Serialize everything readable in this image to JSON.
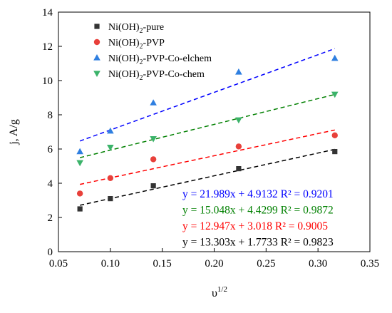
{
  "chart_data": {
    "type": "scatter",
    "xlabel": "υ",
    "xlabel_sup": "1/2",
    "ylabel": "j, A/g",
    "xlim": [
      0.05,
      0.35
    ],
    "ylim": [
      0,
      14
    ],
    "xticks": [
      0.05,
      0.1,
      0.15,
      0.2,
      0.25,
      0.3,
      0.35
    ],
    "xtick_labels": [
      "0.05",
      "0.10",
      "0.15",
      "0.20",
      "0.25",
      "0.30",
      "0.35"
    ],
    "yticks": [
      0,
      2,
      4,
      6,
      8,
      10,
      12,
      14
    ],
    "ytick_labels": [
      "0",
      "2",
      "4",
      "6",
      "8",
      "10",
      "12",
      "14"
    ],
    "grid": false,
    "legend_position": "top-left",
    "series": [
      {
        "name": "Ni(OH)",
        "name_sub": "2",
        "name_suffix": "-pure",
        "marker": "square",
        "color": "#333333",
        "line_color": "#000000",
        "x": [
          0.0707,
          0.1,
          0.1414,
          0.2236,
          0.3162
        ],
        "y": [
          2.5,
          3.1,
          3.85,
          4.85,
          5.85
        ],
        "fit": {
          "slope": 13.303,
          "intercept": 1.7733
        },
        "equation": "y = 13.303x + 1.7733 R² = 0.9823"
      },
      {
        "name": "Ni(OH)",
        "name_sub": "2",
        "name_suffix": "-PVP",
        "marker": "circle",
        "color": "#e8403a",
        "line_color": "#ff0000",
        "x": [
          0.0707,
          0.1,
          0.1414,
          0.2236,
          0.3162
        ],
        "y": [
          3.4,
          4.3,
          5.4,
          6.15,
          6.8
        ],
        "fit": {
          "slope": 12.947,
          "intercept": 3.018
        },
        "equation": "y = 12.947x + 3.018 R² = 0.9005"
      },
      {
        "name": "Ni(OH)",
        "name_sub": "2",
        "name_suffix": "-PVP-Co-elchem",
        "marker": "triangle-up",
        "color": "#2f7fe0",
        "line_color": "#0000ff",
        "x": [
          0.0707,
          0.1,
          0.1414,
          0.2236,
          0.3162
        ],
        "y": [
          5.85,
          7.05,
          8.7,
          10.5,
          11.3
        ],
        "fit": {
          "slope": 21.989,
          "intercept": 4.9132
        },
        "equation": "y = 21.989x + 4.9132 R² = 0.9201"
      },
      {
        "name": "Ni(OH)",
        "name_sub": "2",
        "name_suffix": "-PVP-Co-chem",
        "marker": "triangle-down",
        "color": "#3bb36a",
        "line_color": "#008000",
        "x": [
          0.0707,
          0.1,
          0.1414,
          0.2236,
          0.3162
        ],
        "y": [
          5.2,
          6.1,
          6.6,
          7.7,
          9.2
        ],
        "fit": {
          "slope": 15.048,
          "intercept": 4.4299
        },
        "equation": "y = 15.048x + 4.4299 R² = 0.9872"
      }
    ],
    "equation_order": [
      2,
      3,
      1,
      0
    ]
  }
}
